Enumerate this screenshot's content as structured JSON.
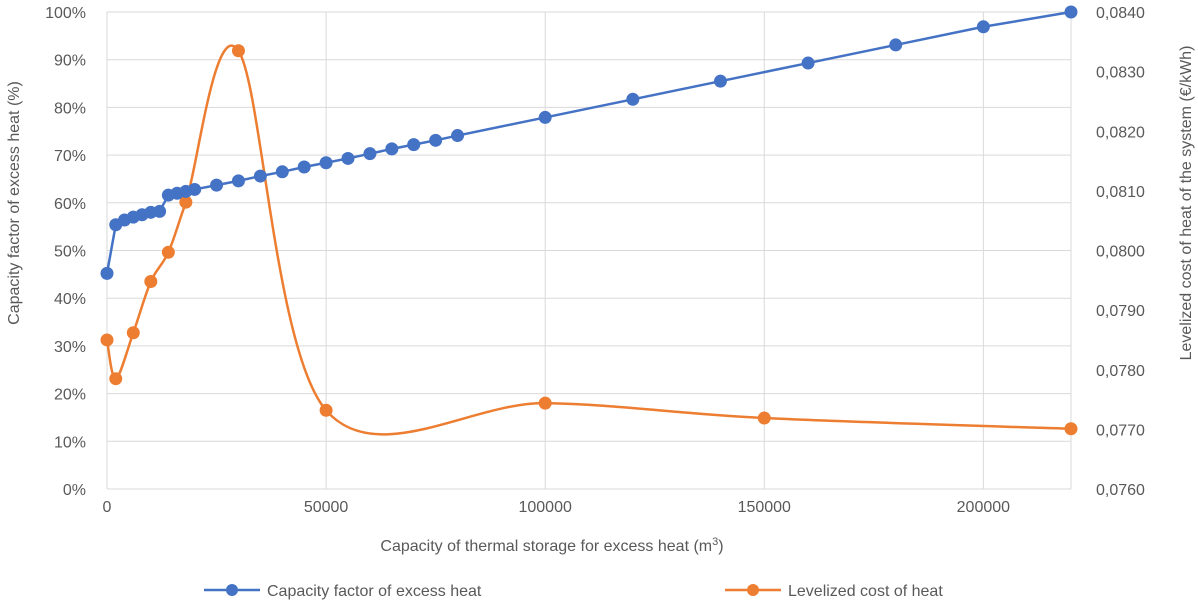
{
  "chart_data": {
    "type": "line",
    "title": "",
    "xlabel": "Capacity of thermal storage for excess heat (m",
    "xlabel_sup": "3",
    "xlabel_suffix": ")",
    "ylabel_left": "Capacity factor of excess heat (%)",
    "ylabel_right": "Levelized cost of heat of the system (€/kWh)",
    "xlim": [
      0,
      220000
    ],
    "x_ticks": [
      0,
      50000,
      100000,
      150000,
      200000
    ],
    "x_tick_labels": [
      "0",
      "50000",
      "100000",
      "150000",
      "200000"
    ],
    "ylim_left": [
      0,
      100
    ],
    "y_left_ticks": [
      0,
      10,
      20,
      30,
      40,
      50,
      60,
      70,
      80,
      90,
      100
    ],
    "y_left_tick_labels": [
      "0%",
      "10%",
      "20%",
      "30%",
      "40%",
      "50%",
      "60%",
      "70%",
      "80%",
      "90%",
      "100%"
    ],
    "ylim_right": [
      0.076,
      0.084
    ],
    "y_right_ticks": [
      0.076,
      0.077,
      0.078,
      0.079,
      0.08,
      0.081,
      0.082,
      0.083,
      0.084
    ],
    "y_right_tick_labels": [
      "0,0760",
      "0,0770",
      "0,0780",
      "0,0790",
      "0,0800",
      "0,0810",
      "0,0820",
      "0,0830",
      "0,0840"
    ],
    "grid": true,
    "legend_position": "bottom",
    "series": [
      {
        "name": "Capacity factor of excess heat",
        "axis": "left",
        "color": "#4472c4",
        "smooth": false,
        "x": [
          0,
          2000,
          4000,
          6000,
          8000,
          10000,
          12000,
          14000,
          16000,
          18000,
          20000,
          25000,
          30000,
          35000,
          40000,
          45000,
          50000,
          55000,
          60000,
          65000,
          70000,
          75000,
          80000,
          100000,
          120000,
          140000,
          160000,
          180000,
          200000,
          220000
        ],
        "y": [
          45.2,
          55.4,
          56.4,
          57.0,
          57.5,
          58.0,
          58.2,
          61.6,
          62.0,
          62.4,
          62.8,
          63.7,
          64.6,
          65.6,
          66.5,
          67.5,
          68.4,
          69.3,
          70.3,
          71.3,
          72.2,
          73.1,
          74.1,
          77.9,
          81.7,
          85.5,
          89.3,
          93.1,
          96.9,
          100.0
        ]
      },
      {
        "name": "Levelized cost of heat",
        "axis": "right",
        "color": "#ed7d31",
        "smooth": true,
        "x": [
          0,
          2000,
          6000,
          10000,
          14000,
          18000,
          30000,
          50000,
          100000,
          150000,
          220000
        ],
        "y": [
          0.0785,
          0.07785,
          0.07862,
          0.07948,
          0.07997,
          0.08081,
          0.08335,
          0.07732,
          0.07744,
          0.07719,
          0.07701
        ]
      }
    ]
  }
}
